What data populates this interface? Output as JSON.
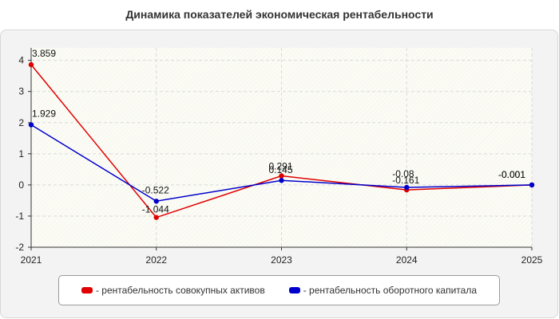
{
  "chart_data": {
    "type": "line",
    "title": "Динамика показателей экономическая рентабельности",
    "categories": [
      "2021",
      "2022",
      "2023",
      "2024",
      "2025"
    ],
    "ylim": [
      -2,
      4.4
    ],
    "yticks": [
      -2,
      -1,
      0,
      1,
      2,
      3,
      4
    ],
    "grid": true,
    "legend_position": "bottom",
    "series": [
      {
        "name": "- рентабельность совокупных активов",
        "color": "#e00000",
        "values": [
          3.859,
          -1.044,
          0.291,
          -0.161,
          -0.001
        ],
        "labels": [
          "3.859",
          "-1.044",
          "0.291",
          "-0.161",
          "-0.001"
        ]
      },
      {
        "name": "- рентабельность оборотного капитала",
        "color": "#0000cc",
        "values": [
          1.929,
          -0.522,
          0.145,
          -0.08,
          -0.001
        ],
        "labels": [
          "1.929",
          "-0.522",
          "0.145",
          "-0.08",
          "-0.001"
        ]
      }
    ]
  }
}
